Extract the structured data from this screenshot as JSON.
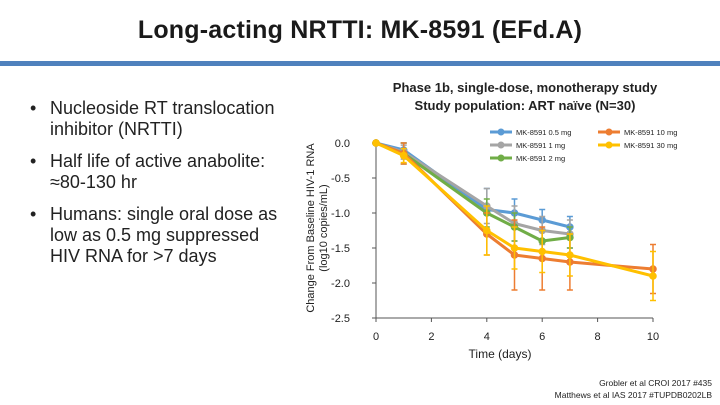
{
  "title": "Long-acting NRTTI: MK-8591 (EFd.A)",
  "bullets": [
    "Nucleoside RT translocation inhibitor (NRTTI)",
    "Half life of active anabolite: ≈80-130 hr",
    "Humans: single oral dose as low as 0.5 mg suppressed HIV RNA for >7 days"
  ],
  "study_header": {
    "line1": "Phase 1b, single-dose, monotherapy study",
    "line2": "Study population:  ART naïve (N=30)"
  },
  "citations": [
    "Grobler et al CROI 2017 #435",
    "Matthews et al IAS 2017 #TUPDB0202LB"
  ],
  "colors": {
    "accent_rule": "#4f81bd",
    "series": [
      "#5b9bd5",
      "#a5a5a5",
      "#70ad47",
      "#ed7d31",
      "#ffc000"
    ]
  },
  "chart_data": {
    "type": "line",
    "ylabel_line1": "Change From Baseline HIV-1 RNA",
    "ylabel_line2": "(log10 copies/mL)",
    "xlabel": "Time (days)",
    "xlim": [
      0,
      10
    ],
    "ylim": [
      -2.5,
      0.0
    ],
    "xticks": [
      0,
      2,
      4,
      6,
      8,
      10
    ],
    "yticks": [
      0.0,
      -0.5,
      -1.0,
      -1.5,
      -2.0,
      -2.5
    ],
    "ytick_labels": [
      "0.0",
      "-0.5",
      "-1.0",
      "-1.5",
      "-2.0",
      "-2.5"
    ],
    "series": [
      {
        "name": "MK-8591 0.5 mg",
        "x": [
          0,
          1,
          4,
          5,
          6,
          7
        ],
        "y": [
          0.0,
          -0.1,
          -0.95,
          -1.0,
          -1.1,
          -1.2
        ],
        "err": [
          0.02,
          0.1,
          0.3,
          0.2,
          0.15,
          0.15
        ]
      },
      {
        "name": "MK-8591 1 mg",
        "x": [
          0,
          1,
          4,
          5,
          6,
          7
        ],
        "y": [
          0.0,
          -0.13,
          -0.9,
          -1.15,
          -1.25,
          -1.3
        ],
        "err": [
          0.02,
          0.1,
          0.25,
          0.25,
          0.2,
          0.2
        ]
      },
      {
        "name": "MK-8591 2 mg",
        "x": [
          0,
          1,
          4,
          5,
          6,
          7
        ],
        "y": [
          0.0,
          -0.15,
          -1.0,
          -1.2,
          -1.4,
          -1.35
        ],
        "err": [
          0.02,
          0.15,
          0.2,
          0.2,
          0.15,
          0.15
        ]
      },
      {
        "name": "MK-8591 10 mg",
        "x": [
          0,
          1,
          4,
          5,
          6,
          7,
          10
        ],
        "y": [
          0.0,
          -0.15,
          -1.3,
          -1.6,
          -1.65,
          -1.7,
          -1.8
        ],
        "err": [
          0.02,
          0.15,
          0.3,
          0.5,
          0.45,
          0.4,
          0.35
        ]
      },
      {
        "name": "MK-8591 30 mg",
        "x": [
          0,
          1,
          4,
          5,
          6,
          7,
          10
        ],
        "y": [
          0.0,
          -0.18,
          -1.25,
          -1.5,
          -1.55,
          -1.6,
          -1.9
        ],
        "err": [
          0.02,
          0.1,
          0.35,
          0.3,
          0.3,
          0.3,
          0.35
        ]
      }
    ],
    "legend_position": "top-right"
  }
}
